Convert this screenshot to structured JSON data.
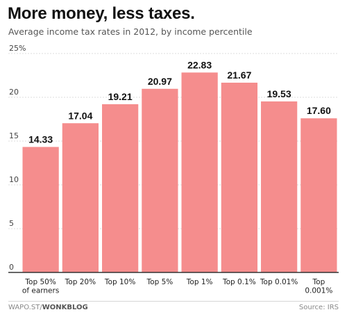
{
  "header": {
    "title": "More money, less taxes.",
    "subtitle": "Average income tax rates in 2012, by income percentile"
  },
  "footer": {
    "site": "WAPO.ST/",
    "brand": "WONKBLOG",
    "source": "Source: IRS"
  },
  "colors": {
    "bar": "#f58d8d",
    "grid": "#dddddd",
    "axis": "#333333"
  },
  "chart_data": {
    "type": "bar",
    "title": "More money, less taxes.",
    "subtitle": "Average income tax rates in 2012, by income percentile",
    "xlabel": "",
    "ylabel": "",
    "categories": [
      "Top 50%\nof earners",
      "Top 20%",
      "Top 10%",
      "Top 5%",
      "Top 1%",
      "Top 0.1%",
      "Top 0.01%",
      "Top\n0.001%"
    ],
    "values": [
      14.33,
      17.04,
      19.21,
      20.97,
      22.83,
      21.67,
      19.53,
      17.6
    ],
    "value_labels": [
      "14.33",
      "17.04",
      "19.21",
      "20.97",
      "22.83",
      "21.67",
      "19.53",
      "17.60"
    ],
    "ylim": [
      0,
      25
    ],
    "yticks": [
      0,
      5,
      10,
      15,
      20,
      25
    ],
    "ytick_labels": [
      "0",
      "5",
      "10",
      "15",
      "20",
      "25%"
    ],
    "grid": true,
    "legend": "none"
  }
}
